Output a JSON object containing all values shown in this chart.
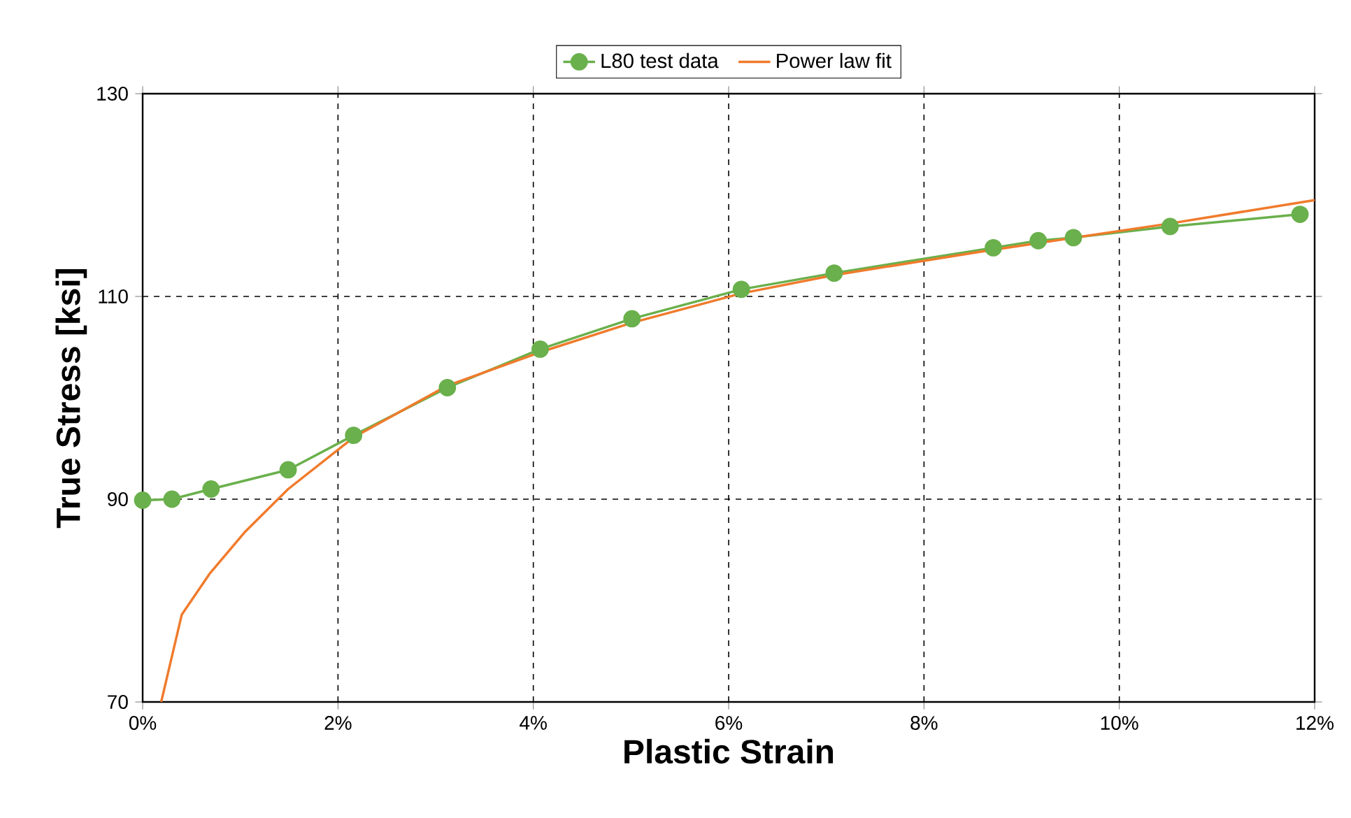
{
  "chart_data": {
    "type": "line",
    "xlabel": "Plastic Strain",
    "ylabel": "True Stress  [ksi]",
    "xlim": [
      0,
      12
    ],
    "ylim": [
      70,
      130
    ],
    "xticks": [
      {
        "value": 0,
        "label": "0%"
      },
      {
        "value": 2,
        "label": "2%"
      },
      {
        "value": 4,
        "label": "4%"
      },
      {
        "value": 6,
        "label": "6%"
      },
      {
        "value": 8,
        "label": "8%"
      },
      {
        "value": 10,
        "label": "10%"
      },
      {
        "value": 12,
        "label": "12%"
      }
    ],
    "yticks": [
      70,
      90,
      110,
      130
    ],
    "grid": true,
    "legend": "top",
    "line_style": "solid",
    "series": [
      {
        "name": "L80 test data",
        "color": "#6ab04c",
        "marker": "circle",
        "x": [
          0.0,
          0.3,
          0.7,
          1.49,
          2.16,
          3.12,
          4.07,
          5.01,
          6.13,
          7.08,
          8.71,
          9.17,
          9.53,
          10.52,
          11.85
        ],
        "values": [
          89.9,
          90.0,
          91.0,
          92.9,
          96.3,
          101.0,
          104.8,
          107.8,
          110.7,
          112.3,
          114.8,
          115.5,
          115.8,
          116.9,
          118.1
        ]
      },
      {
        "name": "Power law fit",
        "color": "#f07b2c",
        "marker": "none",
        "x": [
          0.19,
          0.4,
          0.69,
          1.05,
          1.49,
          2.16,
          3.12,
          4.07,
          5.01,
          6.13,
          7.08,
          8.57,
          10.52,
          12.0
        ],
        "values": [
          70.0,
          78.6,
          82.7,
          86.8,
          91.0,
          96.1,
          101.2,
          104.5,
          107.4,
          110.3,
          112.1,
          114.4,
          117.2,
          119.5
        ]
      }
    ]
  }
}
